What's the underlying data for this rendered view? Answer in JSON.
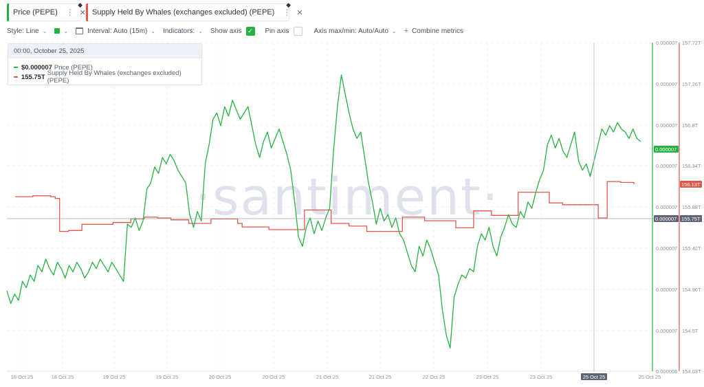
{
  "metrics": [
    {
      "label": "Price (PEPE)",
      "color": "#26b140"
    },
    {
      "label": "Supply Held By Whales (exchanges excluded) (PEPE)",
      "color": "#e0564a"
    }
  ],
  "toolbar": {
    "style_label": "Style: Line",
    "interval_label": "Interval: Auto (15m)",
    "indicators_label": "Indicators:",
    "show_axis_label": "Show axis",
    "pin_axis_label": "Pin axis",
    "axis_maxmin_label": "Axis max/min: Auto/Auto",
    "combine_label": "Combine metrics"
  },
  "tooltip": {
    "date": "00:00, October 25, 2025",
    "price_value": "$0.000007",
    "price_label": "Price (PEPE)",
    "supply_value": "155.75T",
    "supply_label": "Supply Held By Whales (exchanges excluded) (PEPE)"
  },
  "watermark": "·santiment·",
  "colors": {
    "price": "#26b140",
    "supply": "#e0564a",
    "crosshair_label": "#5f6577"
  },
  "chart_data": {
    "type": "line",
    "x_ticks": [
      "18 Oct 25",
      "18 Oct 25",
      "19 Oct 25",
      "19 Oct 25",
      "20 Oct 25",
      "20 Oct 25",
      "21 Oct 25",
      "21 Oct 25",
      "22 Oct 25",
      "23 Oct 25",
      "23 Oct 25",
      "24 Oct 25",
      "25 Oct 25",
      "25 Oct 25"
    ],
    "hover_x_label": "25 Oct 25",
    "price_axis_ticks": [
      "0.000007",
      "0.000007",
      "0.000007",
      "0.000007",
      "0.000007",
      "0.000007",
      "0.000007",
      "0.000007",
      "0.000006"
    ],
    "supply_axis_ticks": [
      "157.72T",
      "157.26T",
      "156.8T",
      "156.34T",
      "155.88T",
      "155.42T",
      "154.96T",
      "154.5T",
      "154.03T"
    ],
    "supply_ylim": [
      154.03,
      157.72
    ],
    "price_badge": "0.000007",
    "crosshair_price_badge": "0.000007",
    "crosshair_supply_badge": "155.75T",
    "supply_badge": "156.13T",
    "grid": true,
    "series": [
      {
        "name": "Price (PEPE)",
        "axis": "left",
        "unit": "normalized price level (0 = axis bottom, 1 = axis top)",
        "values": [
          0.24,
          0.2,
          0.23,
          0.21,
          0.27,
          0.25,
          0.29,
          0.27,
          0.32,
          0.3,
          0.34,
          0.31,
          0.29,
          0.33,
          0.31,
          0.28,
          0.32,
          0.3,
          0.33,
          0.31,
          0.28,
          0.3,
          0.33,
          0.31,
          0.34,
          0.32,
          0.3,
          0.33,
          0.31,
          0.29,
          0.27,
          0.45,
          0.44,
          0.47,
          0.43,
          0.46,
          0.56,
          0.58,
          0.63,
          0.61,
          0.66,
          0.64,
          0.67,
          0.65,
          0.62,
          0.6,
          0.58,
          0.48,
          0.44,
          0.49,
          0.46,
          0.64,
          0.7,
          0.78,
          0.8,
          0.76,
          0.82,
          0.79,
          0.84,
          0.81,
          0.78,
          0.8,
          0.82,
          0.76,
          0.7,
          0.66,
          0.71,
          0.74,
          0.69,
          0.72,
          0.75,
          0.71,
          0.67,
          0.62,
          0.52,
          0.41,
          0.38,
          0.44,
          0.47,
          0.42,
          0.46,
          0.43,
          0.47,
          0.5,
          0.68,
          0.82,
          0.92,
          0.86,
          0.8,
          0.75,
          0.72,
          0.74,
          0.66,
          0.58,
          0.52,
          0.45,
          0.5,
          0.46,
          0.48,
          0.44,
          0.47,
          0.42,
          0.4,
          0.36,
          0.32,
          0.3,
          0.38,
          0.35,
          0.4,
          0.37,
          0.33,
          0.29,
          0.18,
          0.1,
          0.06,
          0.22,
          0.26,
          0.29,
          0.28,
          0.31,
          0.3,
          0.38,
          0.42,
          0.4,
          0.44,
          0.38,
          0.35,
          0.41,
          0.44,
          0.48,
          0.45,
          0.44,
          0.49,
          0.47,
          0.52,
          0.5,
          0.55,
          0.59,
          0.62,
          0.7,
          0.73,
          0.69,
          0.72,
          0.68,
          0.66,
          0.7,
          0.74,
          0.65,
          0.62,
          0.64,
          0.6,
          0.65,
          0.7,
          0.75,
          0.73,
          0.76,
          0.74,
          0.77,
          0.75,
          0.74,
          0.72,
          0.75,
          0.72,
          0.71
        ]
      },
      {
        "name": "Supply Held By Whales (exchanges excluded) (PEPE)",
        "axis": "right",
        "unit": "T",
        "values": [
          155.99,
          155.99,
          155.99,
          155.99,
          156.0,
          156.0,
          156.0,
          156.0,
          155.99,
          155.97,
          155.6,
          155.6,
          155.61,
          155.61,
          155.61,
          155.68,
          155.68,
          155.68,
          155.68,
          155.68,
          155.68,
          155.68,
          155.7,
          155.7,
          155.7,
          155.7,
          155.74,
          155.74,
          155.74,
          155.76,
          155.76,
          155.76,
          155.75,
          155.75,
          155.75,
          155.73,
          155.73,
          155.73,
          155.73,
          155.69,
          155.69,
          155.69,
          155.69,
          155.69,
          155.74,
          155.74,
          155.74,
          155.74,
          155.74,
          155.74,
          155.69,
          155.65,
          155.65,
          155.65,
          155.65,
          155.65,
          155.65,
          155.62,
          155.62,
          155.62,
          155.62,
          155.62,
          155.62,
          155.62,
          155.62,
          155.84,
          155.84,
          155.84,
          155.84,
          155.84,
          155.84,
          155.69,
          155.69,
          155.69,
          155.69,
          155.66,
          155.66,
          155.66,
          155.66,
          155.6,
          155.6,
          155.6,
          155.6,
          155.6,
          155.6,
          155.6,
          155.6,
          155.76,
          155.76,
          155.76,
          155.76,
          155.76,
          155.72,
          155.72,
          155.72,
          155.72,
          155.72,
          155.72,
          155.72,
          155.64,
          155.64,
          155.64,
          155.64,
          155.83,
          155.83,
          155.83,
          155.83,
          155.78,
          155.78,
          155.78,
          155.78,
          155.78,
          155.78,
          156.04,
          156.04,
          156.04,
          156.04,
          156.04,
          156.04,
          156.04,
          155.92,
          155.92,
          155.92,
          155.9,
          155.9,
          155.9,
          155.9,
          155.9,
          155.9,
          155.9,
          155.9,
          155.75,
          155.75,
          156.16,
          156.16,
          156.16,
          156.15,
          156.15,
          156.15,
          156.13
        ]
      }
    ]
  }
}
